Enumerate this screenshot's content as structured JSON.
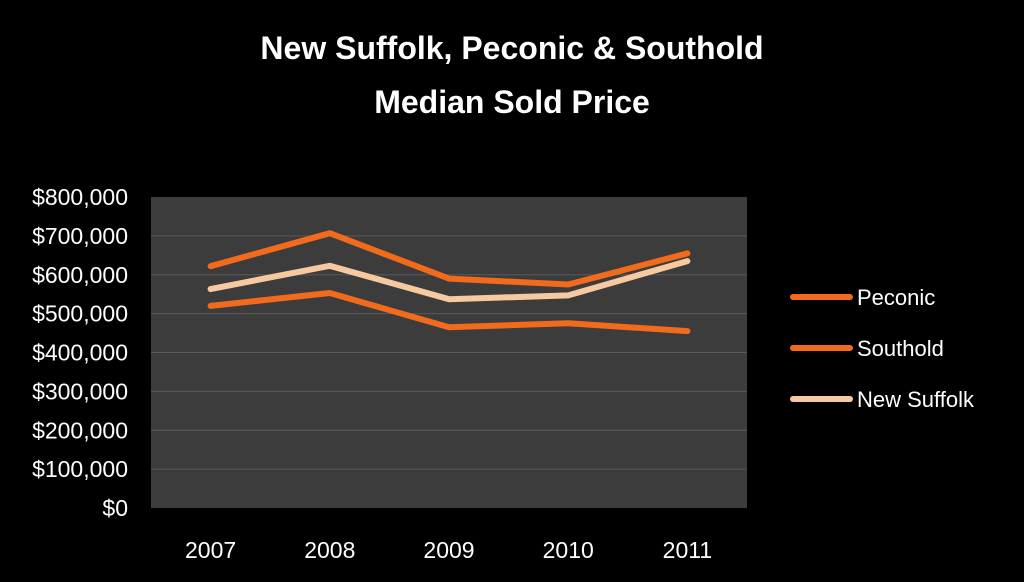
{
  "colors": {
    "background": "#000000",
    "plot_area": "#3c3c3c",
    "gridline": "#5a5a5a",
    "peconic": "#f26a1b",
    "southold": "#f26a1b",
    "new_suffolk": "#f7c9a1"
  },
  "chart_data": {
    "type": "line",
    "title": "New Suffolk, Peconic & Southold",
    "subtitle": "Median Sold Price",
    "xlabel": "",
    "ylabel": "",
    "categories": [
      "2007",
      "2008",
      "2009",
      "2010",
      "2011"
    ],
    "ylim": [
      0,
      800000
    ],
    "y_ticks": [
      0,
      100000,
      200000,
      300000,
      400000,
      500000,
      600000,
      700000,
      800000
    ],
    "y_tick_labels": [
      "$0",
      "$100,000",
      "$200,000",
      "$300,000",
      "$400,000",
      "$500,000",
      "$600,000",
      "$700,000",
      "$800,000"
    ],
    "grid": true,
    "legend_position": "right",
    "series": [
      {
        "name": "Peconic",
        "color": "#f26a1b",
        "values": [
          520000,
          553000,
          465000,
          475000,
          455000
        ]
      },
      {
        "name": "Southold",
        "color": "#f26a1b",
        "values": [
          622000,
          707000,
          590000,
          575000,
          655000
        ]
      },
      {
        "name": "New Suffolk",
        "color": "#f7c9a1",
        "values": [
          563000,
          623000,
          537000,
          547000,
          635000
        ]
      }
    ]
  }
}
